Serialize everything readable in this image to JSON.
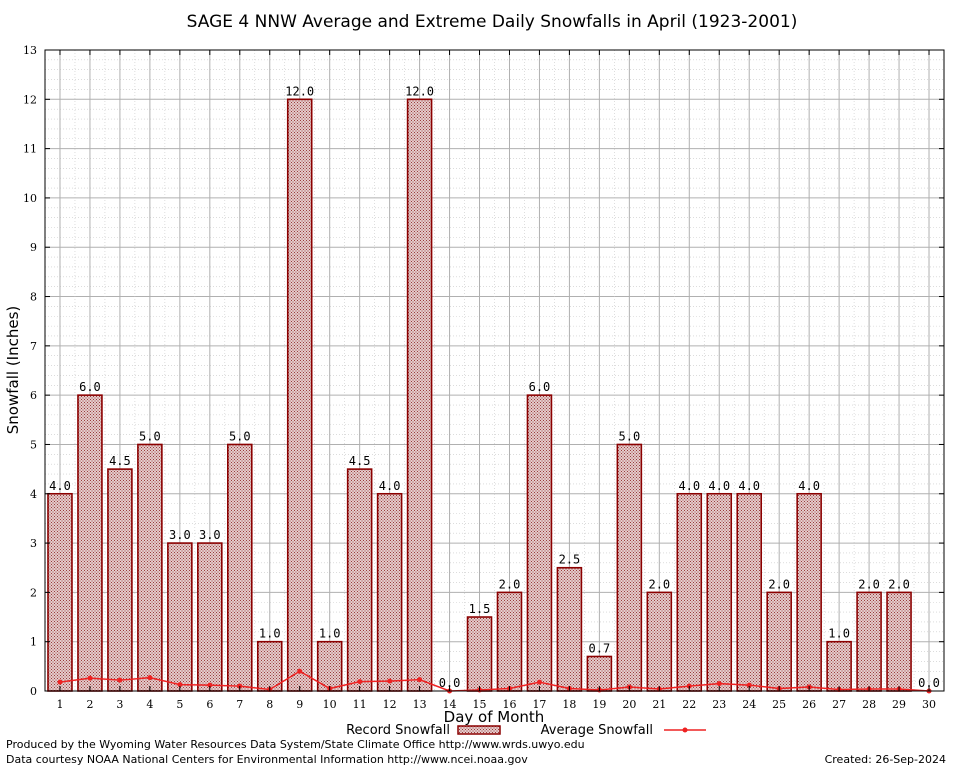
{
  "chart_data": {
    "type": "bar",
    "title": "SAGE 4 NNW Average and Extreme Daily Snowfalls in April (1923-2001)",
    "xlabel": "Day of Month",
    "ylabel": "Snowfall (Inches)",
    "ylim": [
      0,
      13
    ],
    "yticks": [
      "0",
      "1",
      "2",
      "3",
      "4",
      "5",
      "6",
      "7",
      "8",
      "9",
      "10",
      "11",
      "12",
      "13"
    ],
    "categories": [
      "1",
      "2",
      "3",
      "4",
      "5",
      "6",
      "7",
      "8",
      "9",
      "10",
      "11",
      "12",
      "13",
      "14",
      "15",
      "16",
      "17",
      "18",
      "19",
      "20",
      "21",
      "22",
      "23",
      "24",
      "25",
      "26",
      "27",
      "28",
      "29",
      "30"
    ],
    "series": [
      {
        "name": "Record Snowfall",
        "type": "bar",
        "values": [
          4.0,
          6.0,
          4.5,
          5.0,
          3.0,
          3.0,
          5.0,
          1.0,
          12.0,
          1.0,
          4.5,
          4.0,
          12.0,
          0.0,
          1.5,
          2.0,
          6.0,
          2.5,
          0.7,
          5.0,
          2.0,
          4.0,
          4.0,
          4.0,
          2.0,
          4.0,
          1.0,
          2.0,
          2.0,
          0.0
        ],
        "labels": [
          "4.0",
          "6.0",
          "4.5",
          "5.0",
          "3.0",
          "3.0",
          "5.0",
          "1.0",
          "12.0",
          "1.0",
          "4.5",
          "4.0",
          "12.0",
          "0.0",
          "1.5",
          "2.0",
          "6.0",
          "2.5",
          "0.7",
          "5.0",
          "2.0",
          "4.0",
          "4.0",
          "4.0",
          "2.0",
          "4.0",
          "1.0",
          "2.0",
          "2.0",
          "0.0"
        ]
      },
      {
        "name": "Average Snowfall",
        "type": "line",
        "values": [
          0.18,
          0.26,
          0.22,
          0.27,
          0.13,
          0.12,
          0.1,
          0.03,
          0.4,
          0.05,
          0.19,
          0.2,
          0.23,
          0.0,
          0.02,
          0.05,
          0.18,
          0.05,
          0.02,
          0.08,
          0.04,
          0.1,
          0.15,
          0.12,
          0.05,
          0.08,
          0.03,
          0.04,
          0.04,
          0.0
        ]
      }
    ],
    "grid": true,
    "legend_position": "bottom",
    "colors": {
      "bar_edge": "#8b0000",
      "bar_fill": "#d8b8b8",
      "line": "#ee2222",
      "grid_major": "#b0b0b0",
      "grid_minor": "#c8c8c8"
    }
  },
  "footer": {
    "credit_line1": "Produced by the Wyoming Water Resources Data System/State Climate Office http://www.wrds.uwyo.edu",
    "credit_line2": "Data courtesy NOAA National Centers for Environmental Information http://www.ncei.noaa.gov",
    "created": "Created:  26-Sep-2024"
  }
}
